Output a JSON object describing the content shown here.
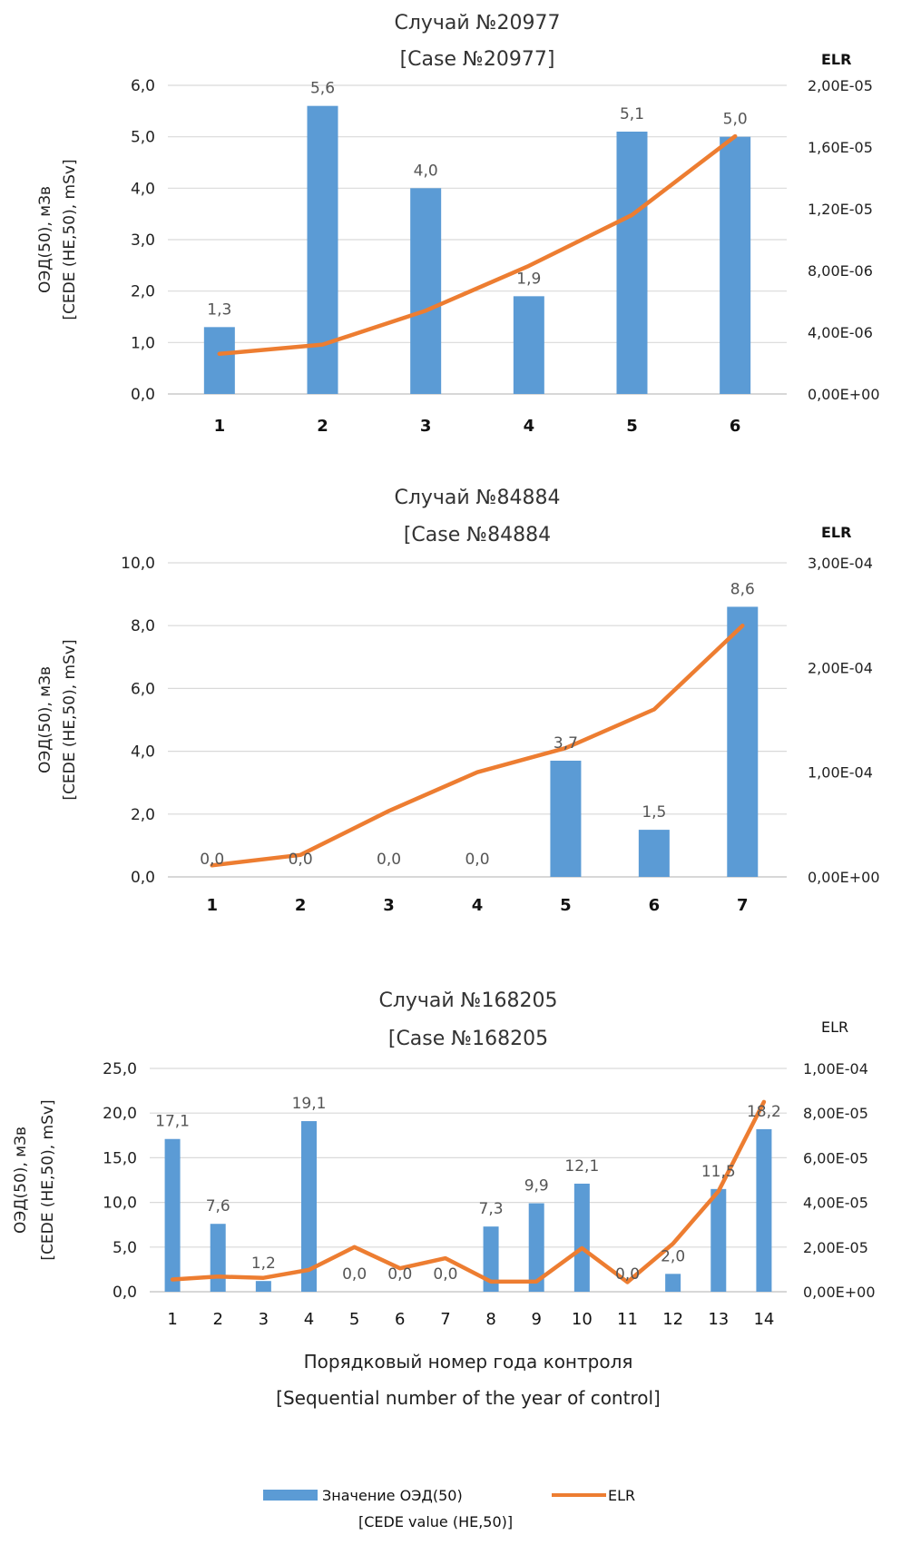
{
  "colors": {
    "bars": "#5b9bd5",
    "line": "#ed7d31",
    "grid": "#d9d9d9",
    "text": "#333333"
  },
  "legend": {
    "bar_label": "Значение ОЭД(50)",
    "bar_label_2": "[CEDE value (HE,50)]",
    "line_label": "ELR"
  },
  "chart_data": [
    {
      "type": "bar",
      "title": "Случай №20977",
      "subtitle": "[Case №20977]",
      "ylabel": "ОЭД(50), мЗв",
      "ylabel2": "[CEDE (HE,50), mSv]",
      "y2label": "ELR",
      "xlabel": "",
      "categories": [
        "1",
        "2",
        "3",
        "4",
        "5",
        "6"
      ],
      "values": [
        1.3,
        5.6,
        4.0,
        1.9,
        5.1,
        5.0
      ],
      "value_labels": [
        "1,3",
        "5,6",
        "4,0",
        "1,9",
        "5,1",
        "5,0"
      ],
      "ylim": [
        0,
        6
      ],
      "yticks": [
        "0,0",
        "1,0",
        "2,0",
        "3,0",
        "4,0",
        "5,0",
        "6,0"
      ],
      "y2lim": [
        0,
        2e-05
      ],
      "y2ticks": [
        "0,00E+00",
        "4,00E-06",
        "8,00E-06",
        "1,20E-05",
        "1,60E-05",
        "2,00E-05"
      ],
      "elr": [
        2.6e-06,
        3.2e-06,
        5.4e-06,
        8.3e-06,
        1.16e-05,
        1.67e-05
      ],
      "x_bold": true
    },
    {
      "type": "bar",
      "title": "Случай №84884",
      "subtitle": "[Case №84884",
      "ylabel": "ОЭД(50), мЗв",
      "ylabel2": "[CEDE (HE,50), mSv]",
      "y2label": "ELR",
      "xlabel": "",
      "categories": [
        "1",
        "2",
        "3",
        "4",
        "5",
        "6",
        "7"
      ],
      "values": [
        0.0,
        0.0,
        0.0,
        0.0,
        3.7,
        1.5,
        8.6
      ],
      "value_labels": [
        "0,0",
        "0,0",
        "0,0",
        "0,0",
        "3,7",
        "1,5",
        "8,6"
      ],
      "ylim": [
        0,
        10
      ],
      "yticks": [
        "0,0",
        "2,0",
        "4,0",
        "6,0",
        "8,0",
        "10,0"
      ],
      "y2lim": [
        0,
        0.0003
      ],
      "y2ticks": [
        "0,00E+00",
        "1,00E-04",
        "2,00E-04",
        "3,00E-04"
      ],
      "elr": [
        1.1e-05,
        2.1e-05,
        6.3e-05,
        0.0001,
        0.000123,
        0.00016,
        0.00024
      ],
      "x_bold": true
    },
    {
      "type": "bar",
      "title": "Случай №168205",
      "subtitle": "[Case №168205",
      "ylabel": "ОЭД(50), мЗв",
      "ylabel2": "[CEDE (HE,50), mSv]",
      "y2label": "ELR",
      "xlabel": "Порядковый номер года контроля",
      "xlabel2": "[Sequential number of the year of control]",
      "categories": [
        "1",
        "2",
        "3",
        "4",
        "5",
        "6",
        "7",
        "8",
        "9",
        "10",
        "11",
        "12",
        "13",
        "14"
      ],
      "values": [
        17.1,
        7.6,
        1.2,
        19.1,
        0.0,
        0.0,
        0.0,
        7.3,
        9.9,
        12.1,
        0.0,
        2.0,
        11.5,
        18.2
      ],
      "value_labels": [
        "17,1",
        "7,6",
        "1,2",
        "19,1",
        "0,0",
        "0,0",
        "0,0",
        "7,3",
        "9,9",
        "12,1",
        "0,0",
        "2,0",
        "11,5",
        "18,2"
      ],
      "ylim": [
        0,
        25
      ],
      "yticks": [
        "0,0",
        "5,0",
        "10,0",
        "15,0",
        "20,0",
        "25,0"
      ],
      "y2lim": [
        0,
        0.0001
      ],
      "y2ticks": [
        "0,00E+00",
        "2,00E-05",
        "4,00E-05",
        "6,00E-05",
        "8,00E-05",
        "1,00E-04"
      ],
      "elr": [
        5.5e-06,
        6.8e-06,
        6.2e-06,
        9.8e-06,
        2e-05,
        1.05e-05,
        1.5e-05,
        4.5e-06,
        4.6e-06,
        1.95e-05,
        4.3e-06,
        2.15e-05,
        4.5e-05,
        8.5e-05
      ],
      "x_bold": false
    }
  ]
}
